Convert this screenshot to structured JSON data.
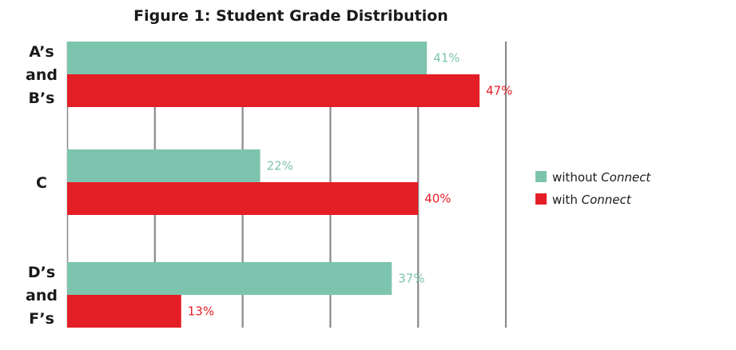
{
  "chart_data": {
    "type": "bar",
    "orientation": "horizontal",
    "title": "Figure 1: Student Grade Distribution",
    "categories": [
      {
        "name": "ab",
        "lines": [
          "A’s",
          "and",
          "B’s"
        ]
      },
      {
        "name": "c",
        "lines": [
          "C"
        ]
      },
      {
        "name": "df",
        "lines": [
          "D’s",
          "and",
          "F’s"
        ]
      }
    ],
    "series": [
      {
        "name": "without-connect",
        "legend_prefix": "without ",
        "legend_italic": "Connect",
        "color": "#7cc4ad",
        "values": [
          41,
          22,
          37
        ],
        "labels": [
          "41%",
          "22%",
          "37%"
        ]
      },
      {
        "name": "with-connect",
        "legend_prefix": "with ",
        "legend_italic": "Connect",
        "color": "#e41e26",
        "values": [
          47,
          40,
          13
        ],
        "labels": [
          "47%",
          "40%",
          "13%"
        ]
      }
    ],
    "xlim": [
      0,
      51
    ],
    "grid": true,
    "gridline_color": "#8a8a8a",
    "legend_position": "right"
  }
}
